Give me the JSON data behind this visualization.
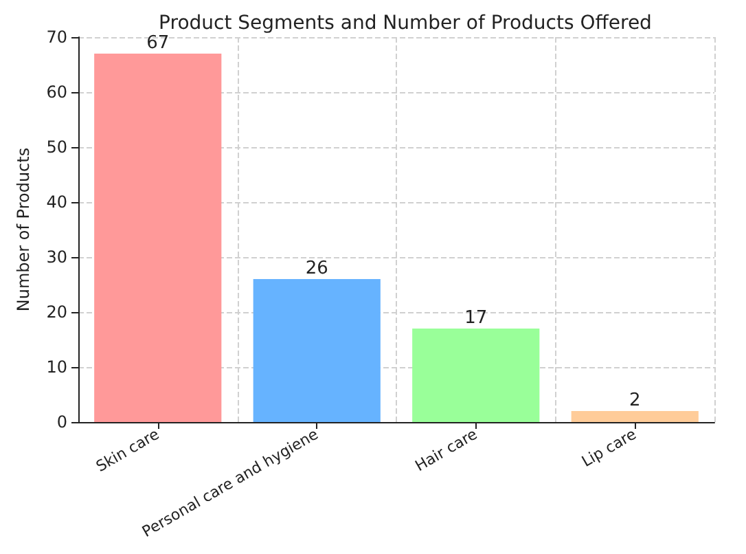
{
  "chart_data": {
    "type": "bar",
    "title": "Product Segments and Number of Products Offered",
    "ylabel": "Number of Products",
    "categories": [
      "Skin care",
      "Personal care and hygiene",
      "Hair care",
      "Lip care"
    ],
    "values": [
      67,
      26,
      17,
      2
    ],
    "colors": [
      "#ff9999",
      "#66b3ff",
      "#99ff99",
      "#ffcc99"
    ],
    "ylim": [
      0,
      70
    ],
    "yticks": [
      0,
      10,
      20,
      30,
      40,
      50,
      60,
      70
    ],
    "grid": true,
    "data_labels": true
  }
}
